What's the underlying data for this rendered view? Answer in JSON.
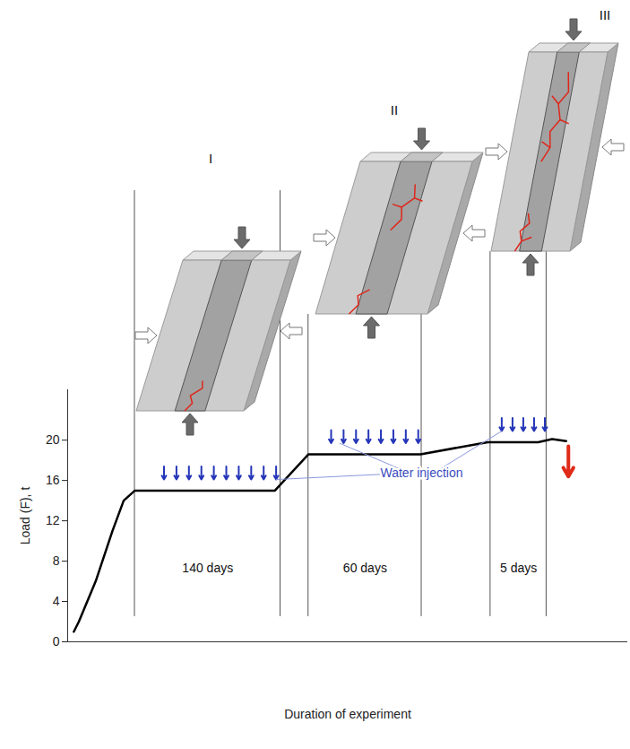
{
  "chart_data": {
    "type": "line",
    "x_label": "Duration of experiment",
    "y_label": "Load (F), t",
    "xlim": [
      0,
      100
    ],
    "ylim": [
      0,
      25
    ],
    "yticks": [
      0,
      4,
      8,
      12,
      16,
      20
    ],
    "tick_labels": "y",
    "color": "#000000",
    "x": [
      1.1,
      2,
      5,
      8,
      10,
      12,
      37,
      43,
      63,
      75,
      84,
      86.5,
      89
    ],
    "values": [
      1,
      2,
      6,
      11,
      14,
      15,
      15,
      18.6,
      18.6,
      19.8,
      19.8,
      20.1,
      19.9
    ],
    "stages": [
      {
        "label": "I",
        "duration": "140 days",
        "start": 12,
        "end": 38
      },
      {
        "label": "II",
        "duration": "60 days",
        "start": 43,
        "end": 63.2
      },
      {
        "label": "III",
        "duration": "5 days",
        "start": 75.5,
        "end": 85.5
      }
    ],
    "annotation": "Water injection"
  }
}
